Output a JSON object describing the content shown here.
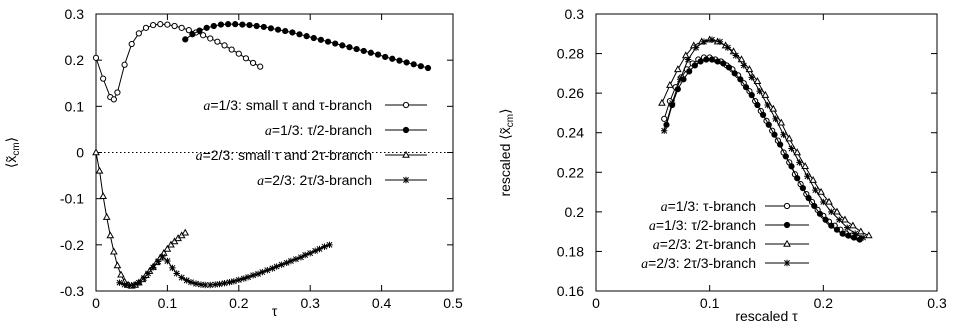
{
  "chart_data": [
    {
      "type": "line",
      "xlabel": "τ",
      "ylabel": "⟨x̃_cm⟩",
      "ylabel_main": "⟨x̃",
      "ylabel_sub": "cm",
      "ylabel_close": "⟩",
      "xlim": [
        0,
        0.5
      ],
      "ylim": [
        -0.3,
        0.3
      ],
      "xticks": [
        0,
        0.1,
        0.2,
        0.3,
        0.4,
        0.5
      ],
      "xtick_labels": [
        "0",
        "0.1",
        "0.2",
        "0.3",
        "0.4",
        "0.5"
      ],
      "yticks": [
        -0.3,
        -0.2,
        -0.1,
        0,
        0.1,
        0.2,
        0.3
      ],
      "ytick_labels": [
        "-0.3",
        "-0.2",
        "-0.1",
        "0",
        "0.1",
        "0.2",
        "0.3"
      ],
      "zero_line": true,
      "legend_position": "right",
      "series": [
        {
          "name": "a=1/3: small τ and τ-branch",
          "legend_italic": "a",
          "legend_rest": "=1/3: small τ and τ-branch",
          "marker": "circle",
          "x": [
            0.0,
            0.01,
            0.02,
            0.025,
            0.03,
            0.04,
            0.05,
            0.06,
            0.07,
            0.08,
            0.09,
            0.1,
            0.11,
            0.12,
            0.13,
            0.14,
            0.15,
            0.16,
            0.17,
            0.18,
            0.19,
            0.2,
            0.21,
            0.22,
            0.23
          ],
          "y": [
            0.205,
            0.16,
            0.12,
            0.115,
            0.13,
            0.19,
            0.235,
            0.258,
            0.27,
            0.276,
            0.278,
            0.277,
            0.274,
            0.27,
            0.265,
            0.26,
            0.254,
            0.247,
            0.24,
            0.232,
            0.223,
            0.214,
            0.204,
            0.194,
            0.186
          ]
        },
        {
          "name": "a=1/3: τ/2-branch",
          "legend_italic": "a",
          "legend_rest": "=1/3: τ/2-branch",
          "marker": "filled-circle",
          "x": [
            0.125,
            0.135,
            0.145,
            0.155,
            0.165,
            0.175,
            0.185,
            0.195,
            0.205,
            0.215,
            0.225,
            0.235,
            0.245,
            0.255,
            0.265,
            0.275,
            0.285,
            0.295,
            0.305,
            0.315,
            0.325,
            0.335,
            0.345,
            0.355,
            0.365,
            0.375,
            0.385,
            0.395,
            0.405,
            0.415,
            0.425,
            0.435,
            0.445,
            0.455,
            0.465
          ],
          "y": [
            0.245,
            0.256,
            0.264,
            0.27,
            0.274,
            0.277,
            0.278,
            0.278,
            0.277,
            0.276,
            0.274,
            0.272,
            0.269,
            0.266,
            0.263,
            0.26,
            0.256,
            0.252,
            0.248,
            0.244,
            0.24,
            0.236,
            0.232,
            0.228,
            0.224,
            0.22,
            0.216,
            0.212,
            0.207,
            0.203,
            0.199,
            0.195,
            0.191,
            0.187,
            0.183
          ]
        },
        {
          "name": "a=2/3: small τ and 2τ-branch",
          "legend_italic": "a",
          "legend_rest": "=2/3: small τ and 2τ-branch",
          "marker": "triangle",
          "x": [
            0.0,
            0.005,
            0.01,
            0.015,
            0.02,
            0.025,
            0.03,
            0.035,
            0.04,
            0.045,
            0.05,
            0.055,
            0.06,
            0.065,
            0.07,
            0.075,
            0.08,
            0.085,
            0.09,
            0.095,
            0.1,
            0.105,
            0.11,
            0.115,
            0.12,
            0.125
          ],
          "y": [
            0.0,
            -0.04,
            -0.095,
            -0.14,
            -0.18,
            -0.215,
            -0.245,
            -0.265,
            -0.28,
            -0.287,
            -0.289,
            -0.287,
            -0.282,
            -0.275,
            -0.266,
            -0.257,
            -0.248,
            -0.238,
            -0.228,
            -0.218,
            -0.209,
            -0.2,
            -0.193,
            -0.186,
            -0.18,
            -0.174
          ]
        },
        {
          "name": "a=2/3: 2τ/3-branch",
          "legend_italic": "a",
          "legend_rest": "=2/3: 2τ/3-branch",
          "marker": "star",
          "x": [
            0.033,
            0.04,
            0.047,
            0.053,
            0.06,
            0.067,
            0.073,
            0.08,
            0.087,
            0.093,
            0.1,
            0.107,
            0.113,
            0.12,
            0.127,
            0.133,
            0.14,
            0.147,
            0.153,
            0.16,
            0.167,
            0.173,
            0.18,
            0.187,
            0.193,
            0.2,
            0.207,
            0.213,
            0.22,
            0.227,
            0.233,
            0.24,
            0.247,
            0.253,
            0.26,
            0.267,
            0.273,
            0.28,
            0.287,
            0.293,
            0.3,
            0.307,
            0.313,
            0.32,
            0.327
          ],
          "y": [
            -0.282,
            -0.286,
            -0.288,
            -0.287,
            -0.282,
            -0.272,
            -0.262,
            -0.249,
            -0.236,
            -0.226,
            -0.235,
            -0.25,
            -0.262,
            -0.271,
            -0.277,
            -0.281,
            -0.284,
            -0.286,
            -0.287,
            -0.287,
            -0.286,
            -0.285,
            -0.283,
            -0.281,
            -0.279,
            -0.276,
            -0.273,
            -0.27,
            -0.266,
            -0.263,
            -0.259,
            -0.255,
            -0.251,
            -0.247,
            -0.243,
            -0.239,
            -0.235,
            -0.231,
            -0.227,
            -0.222,
            -0.218,
            -0.213,
            -0.209,
            -0.204,
            -0.2
          ]
        }
      ]
    },
    {
      "type": "line",
      "xlabel": "rescaled τ",
      "ylabel": "rescaled ⟨x̃_cm⟩",
      "ylabel_main": "rescaled ⟨x̃",
      "ylabel_sub": "cm",
      "ylabel_close": "⟩",
      "xlim": [
        0,
        0.3
      ],
      "ylim": [
        0.16,
        0.3
      ],
      "xticks": [
        0,
        0.1,
        0.2,
        0.3
      ],
      "xtick_labels": [
        "0",
        "0.1",
        "0.2",
        "0.3"
      ],
      "yticks": [
        0.16,
        0.18,
        0.2,
        0.22,
        0.24,
        0.26,
        0.28,
        0.3
      ],
      "ytick_labels": [
        "0.16",
        "0.18",
        "0.2",
        "0.22",
        "0.24",
        "0.26",
        "0.28",
        "0.3"
      ],
      "legend_position": "bottom-left",
      "series": [
        {
          "name": "a=1/3: τ-branch",
          "legend_italic": "a",
          "legend_rest": "=1/3: τ-branch",
          "marker": "circle",
          "x": [
            0.06,
            0.065,
            0.07,
            0.075,
            0.08,
            0.085,
            0.09,
            0.095,
            0.1,
            0.105,
            0.11,
            0.115,
            0.12,
            0.125,
            0.13,
            0.135,
            0.14,
            0.145,
            0.15,
            0.155,
            0.16,
            0.165,
            0.17,
            0.175,
            0.18,
            0.185,
            0.19,
            0.195,
            0.2,
            0.205,
            0.21,
            0.215,
            0.22,
            0.225,
            0.23
          ],
          "y": [
            0.247,
            0.256,
            0.263,
            0.268,
            0.272,
            0.275,
            0.277,
            0.278,
            0.278,
            0.277,
            0.276,
            0.274,
            0.272,
            0.269,
            0.265,
            0.261,
            0.256,
            0.251,
            0.246,
            0.241,
            0.236,
            0.23,
            0.225,
            0.219,
            0.214,
            0.209,
            0.205,
            0.201,
            0.198,
            0.195,
            0.193,
            0.191,
            0.189,
            0.188,
            0.187
          ]
        },
        {
          "name": "a=1/3: τ/2-branch",
          "legend_italic": "a",
          "legend_rest": "=1/3: τ/2-branch",
          "marker": "filled-circle",
          "x": [
            0.062,
            0.067,
            0.072,
            0.077,
            0.082,
            0.087,
            0.092,
            0.097,
            0.102,
            0.107,
            0.112,
            0.117,
            0.122,
            0.127,
            0.132,
            0.137,
            0.142,
            0.147,
            0.152,
            0.157,
            0.162,
            0.167,
            0.172,
            0.177,
            0.182,
            0.187,
            0.192,
            0.197,
            0.202,
            0.207,
            0.212,
            0.217,
            0.222,
            0.227,
            0.232
          ],
          "y": [
            0.244,
            0.254,
            0.262,
            0.267,
            0.271,
            0.274,
            0.276,
            0.277,
            0.277,
            0.276,
            0.275,
            0.273,
            0.27,
            0.267,
            0.263,
            0.259,
            0.254,
            0.249,
            0.244,
            0.239,
            0.234,
            0.228,
            0.223,
            0.217,
            0.212,
            0.207,
            0.203,
            0.199,
            0.196,
            0.193,
            0.191,
            0.189,
            0.188,
            0.187,
            0.186
          ]
        },
        {
          "name": "a=2/3: 2τ-branch",
          "legend_italic": "a",
          "legend_rest": "=2/3: 2τ-branch",
          "marker": "triangle",
          "x": [
            0.058,
            0.065,
            0.072,
            0.079,
            0.086,
            0.093,
            0.1,
            0.107,
            0.114,
            0.121,
            0.128,
            0.135,
            0.142,
            0.149,
            0.156,
            0.163,
            0.17,
            0.177,
            0.184,
            0.191,
            0.198,
            0.205,
            0.212,
            0.219,
            0.226,
            0.233,
            0.24
          ],
          "y": [
            0.255,
            0.264,
            0.272,
            0.279,
            0.284,
            0.286,
            0.287,
            0.286,
            0.284,
            0.281,
            0.277,
            0.272,
            0.266,
            0.259,
            0.252,
            0.245,
            0.237,
            0.23,
            0.223,
            0.216,
            0.21,
            0.205,
            0.2,
            0.196,
            0.193,
            0.19,
            0.188
          ]
        },
        {
          "name": "a=2/3: 2τ/3-branch",
          "legend_italic": "a",
          "legend_rest": "=2/3: 2τ/3-branch",
          "marker": "star",
          "x": [
            0.06,
            0.067,
            0.074,
            0.081,
            0.088,
            0.095,
            0.102,
            0.109,
            0.116,
            0.123,
            0.13,
            0.137,
            0.144,
            0.151,
            0.158,
            0.165,
            0.172,
            0.179,
            0.186,
            0.193,
            0.2,
            0.207,
            0.214,
            0.221,
            0.228,
            0.235
          ],
          "y": [
            0.241,
            0.255,
            0.267,
            0.277,
            0.283,
            0.286,
            0.287,
            0.286,
            0.283,
            0.279,
            0.274,
            0.268,
            0.261,
            0.254,
            0.247,
            0.239,
            0.232,
            0.225,
            0.218,
            0.211,
            0.205,
            0.2,
            0.196,
            0.192,
            0.189,
            0.187
          ]
        }
      ]
    }
  ]
}
